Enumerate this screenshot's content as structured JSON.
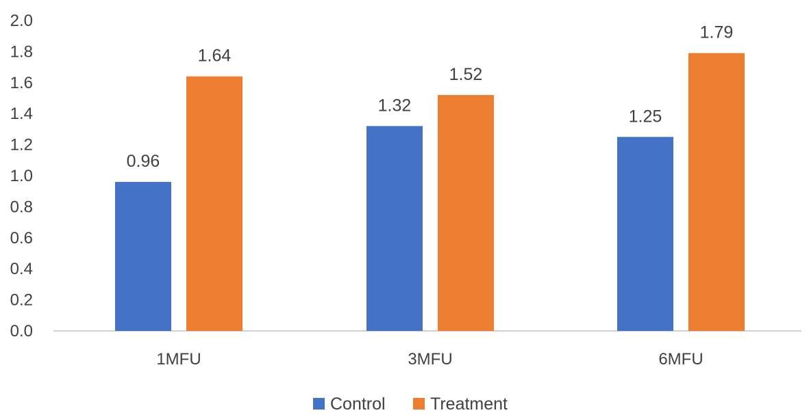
{
  "chart_data": {
    "type": "bar",
    "categories": [
      "1MFU",
      "3MFU",
      "6MFU"
    ],
    "series": [
      {
        "name": "Control",
        "color": "#4472C4",
        "values": [
          0.96,
          1.32,
          1.25
        ],
        "labels": [
          "0.96",
          "1.32",
          "1.25"
        ]
      },
      {
        "name": "Treatment",
        "color": "#ED7D31",
        "values": [
          1.64,
          1.52,
          1.79
        ],
        "labels": [
          "1.64",
          "1.52",
          "1.79"
        ]
      }
    ],
    "ylim": [
      0,
      2.0
    ],
    "y_ticks": [
      "0.0",
      "0.2",
      "0.4",
      "0.6",
      "0.8",
      "1.0",
      "1.2",
      "1.4",
      "1.6",
      "1.8",
      "2.0"
    ],
    "grid": false,
    "legend_position": "bottom-center"
  }
}
